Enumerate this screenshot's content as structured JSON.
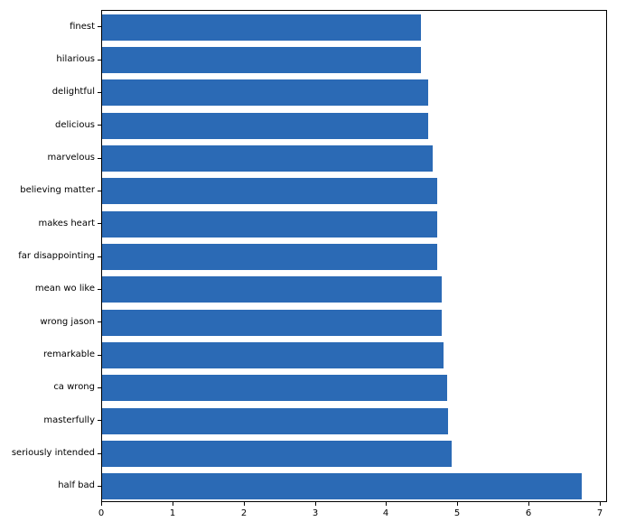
{
  "figure": {
    "background_color": "#ffffff",
    "bar_color": "#2b6ab5",
    "spine_color": "#000000",
    "tick_color": "#000000",
    "tick_label_color": "#000000"
  },
  "chart_data": {
    "type": "bar",
    "orientation": "horizontal",
    "order": "top-to-bottom",
    "title": "",
    "xlabel": "",
    "ylabel": "",
    "grid": false,
    "legend": null,
    "categories": [
      "finest",
      "hilarious",
      "delightful",
      "delicious",
      "marvelous",
      "believing matter",
      "makes heart",
      "far disappointing",
      "mean wo like",
      "wrong jason",
      "remarkable",
      "ca wrong",
      "masterfully",
      "seriously intended",
      "half bad"
    ],
    "values": [
      4.47,
      4.48,
      4.58,
      4.58,
      4.64,
      4.7,
      4.71,
      4.71,
      4.77,
      4.77,
      4.79,
      4.84,
      4.86,
      4.91,
      6.73
    ],
    "xlim": [
      0,
      7.1
    ],
    "x_ticks": [
      0,
      1,
      2,
      3,
      4,
      5,
      6,
      7
    ],
    "x_tick_labels": [
      "0",
      "1",
      "2",
      "3",
      "4",
      "5",
      "6",
      "7"
    ],
    "bar_height_fraction": 0.8
  }
}
